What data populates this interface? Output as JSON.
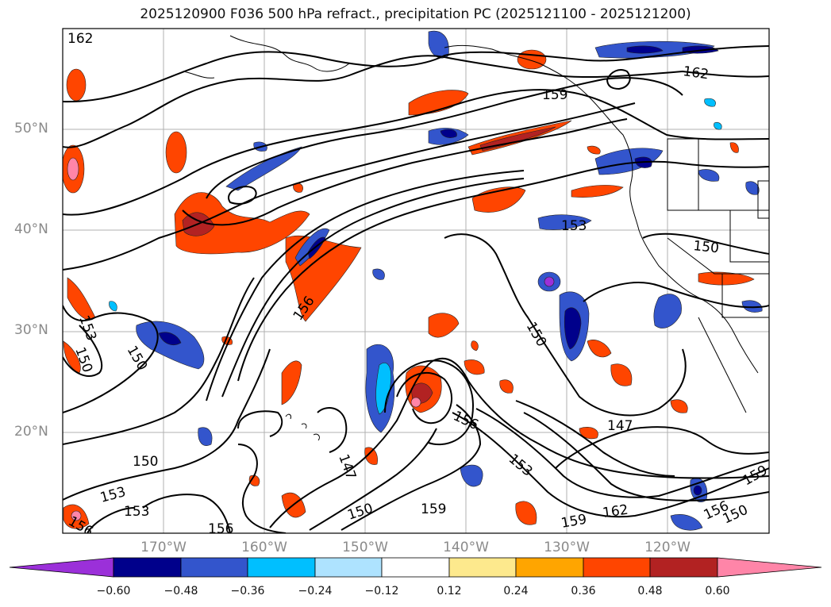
{
  "title": "2025120900 F036 500 hPa refract., precipitation PC (2025121100 - 2025121200)",
  "colors": {
    "neg_extreme": "#9b30d9",
    "neg_060": "#00008b",
    "neg_048": "#3355cc",
    "neg_036": "#00bfff",
    "neg_024": "#aee3ff",
    "neutral": "#ffffff",
    "pos_012": "#fde98d",
    "pos_024": "#ffa500",
    "pos_036": "#ff4500",
    "pos_048": "#b22222",
    "pos_extreme": "#ff85a8"
  },
  "axes": {
    "lat_labels": [
      "50°N",
      "40°N",
      "30°N",
      "20°N"
    ],
    "lon_labels": [
      "170°W",
      "160°W",
      "150°W",
      "140°W",
      "130°W",
      "120°W"
    ]
  },
  "colorbar": {
    "ticks": [
      "−0.60",
      "−0.48",
      "−0.36",
      "−0.24",
      "−0.12",
      "0.12",
      "0.24",
      "0.36",
      "0.48",
      "0.60"
    ]
  },
  "contour_labels": [
    {
      "text": "162"
    },
    {
      "text": "162"
    },
    {
      "text": "159"
    },
    {
      "text": "153"
    },
    {
      "text": "150"
    },
    {
      "text": "156"
    },
    {
      "text": "150"
    },
    {
      "text": "153"
    },
    {
      "text": "150"
    },
    {
      "text": "150"
    },
    {
      "text": "147"
    },
    {
      "text": "156"
    },
    {
      "text": "153"
    },
    {
      "text": "147"
    },
    {
      "text": "150"
    },
    {
      "text": "153"
    },
    {
      "text": "153"
    },
    {
      "text": "156"
    },
    {
      "text": "150"
    },
    {
      "text": "159"
    },
    {
      "text": "159"
    },
    {
      "text": "162"
    },
    {
      "text": "156"
    },
    {
      "text": "150"
    },
    {
      "text": "159"
    },
    {
      "text": "156"
    }
  ]
}
